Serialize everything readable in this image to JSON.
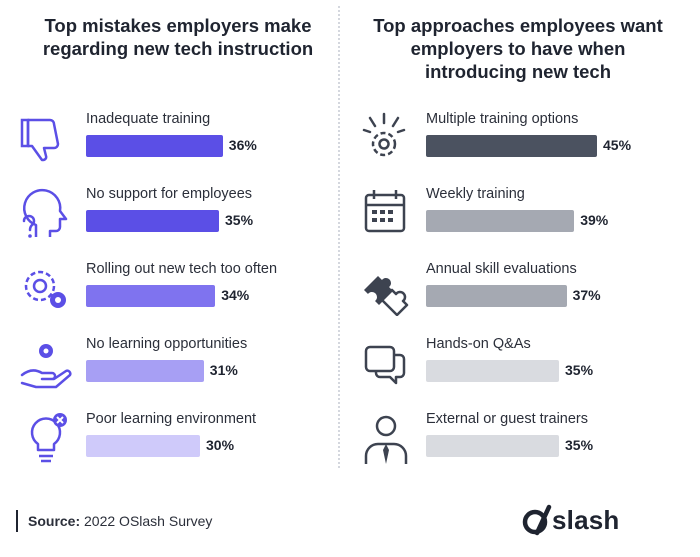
{
  "chart_data": [
    {
      "type": "bar",
      "title": "Top mistakes employers make regarding new tech instruction",
      "categories": [
        "Inadequate training",
        "No support for employees",
        "Rolling out new tech too often",
        "No learning opportunities",
        "Poor learning environment"
      ],
      "values": [
        36,
        35,
        34,
        31,
        30
      ],
      "value_labels": [
        "36%",
        "35%",
        "34%",
        "31%",
        "30%"
      ],
      "colors": [
        "#5b4fe6",
        "#5b4fe6",
        "#7f73ef",
        "#a79ff4",
        "#cfcafa"
      ],
      "icons": [
        "thumbs-down-icon",
        "head-question-icon",
        "gears-icon",
        "hand-gear-icon",
        "lightbulb-x-icon"
      ]
    },
    {
      "type": "bar",
      "title": "Top approaches employees want employers to have when introducing new tech",
      "categories": [
        "Multiple training options",
        "Weekly training",
        "Annual skill evaluations",
        "Hands-on Q&As",
        "External or guest trainers"
      ],
      "values": [
        45,
        39,
        37,
        35,
        35
      ],
      "value_labels": [
        "45%",
        "39%",
        "37%",
        "35%",
        "35%"
      ],
      "colors": [
        "#4b5260",
        "#a5a9b2",
        "#a5a9b2",
        "#d9dbe0",
        "#d9dbe0"
      ],
      "icons": [
        "gear-burst-icon",
        "calendar-icon",
        "puzzle-icon",
        "chat-bubbles-icon",
        "person-tie-icon"
      ]
    }
  ],
  "footer": {
    "source_label": "Source:",
    "source_text": "2022 OSlash Survey",
    "brand": "slash"
  }
}
